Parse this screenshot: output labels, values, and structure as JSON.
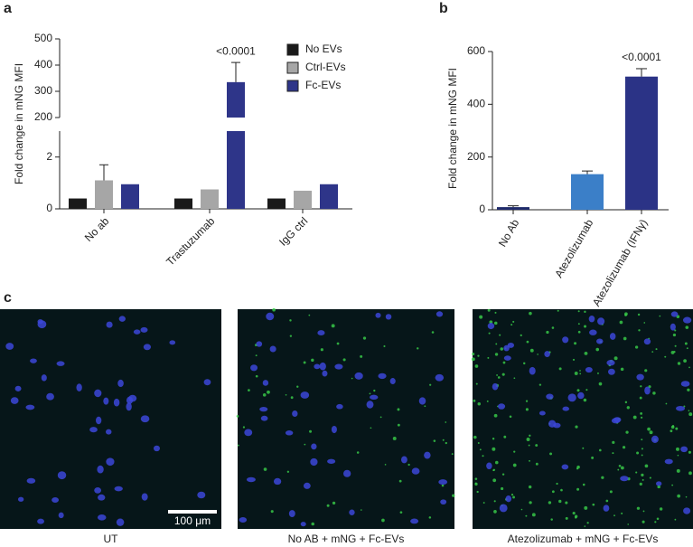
{
  "panel_labels": [
    "a",
    "b",
    "c"
  ],
  "chart_data": [
    {
      "type": "bar",
      "y_label": "Fold change in mNG MFI",
      "categories": [
        "No ab",
        "Trastuzumab",
        "IgG ctrl"
      ],
      "series": [
        {
          "name": "No EVs",
          "color": "#1a1a1a",
          "values": [
            0.4,
            0.4,
            0.4
          ],
          "errors": [
            null,
            null,
            null
          ]
        },
        {
          "name": "Ctrl-EVs",
          "color": "#a6a6a6",
          "values": [
            1.1,
            0.75,
            0.7
          ],
          "errors": [
            0.6,
            null,
            null
          ]
        },
        {
          "name": "Fc-EVs",
          "color": "#2e3589",
          "values": [
            0.95,
            335,
            0.95
          ],
          "errors": [
            null,
            75,
            null
          ]
        }
      ],
      "annotations": [
        {
          "series": 2,
          "index": 1,
          "text": "<0.0001"
        }
      ],
      "ylim": [
        0,
        500
      ],
      "axis_break": [
        3,
        200
      ],
      "yticks": [
        0,
        2,
        200,
        300,
        400,
        500
      ],
      "legend": "top-right"
    },
    {
      "type": "bar",
      "y_label": "Fold change in mNG MFI",
      "categories": [
        "No Ab",
        "Atezolizumab",
        "Atezolizumab (IFNγ)"
      ],
      "values": [
        10,
        135,
        505
      ],
      "errors": [
        5,
        12,
        30
      ],
      "colors": [
        "#1f2a6b",
        "#3b7fc8",
        "#2b3386"
      ],
      "annotations": [
        {
          "index": 2,
          "text": "<0.0001"
        }
      ],
      "ylim": [
        0,
        600
      ],
      "yticks": [
        0,
        200,
        400,
        600
      ]
    }
  ],
  "images": [
    {
      "caption": "UT",
      "scale_bar": "100 μm"
    },
    {
      "caption": "No AB + mNG + Fc-EVs"
    },
    {
      "caption": "Atezolizumab + mNG + Fc-EVs"
    }
  ]
}
